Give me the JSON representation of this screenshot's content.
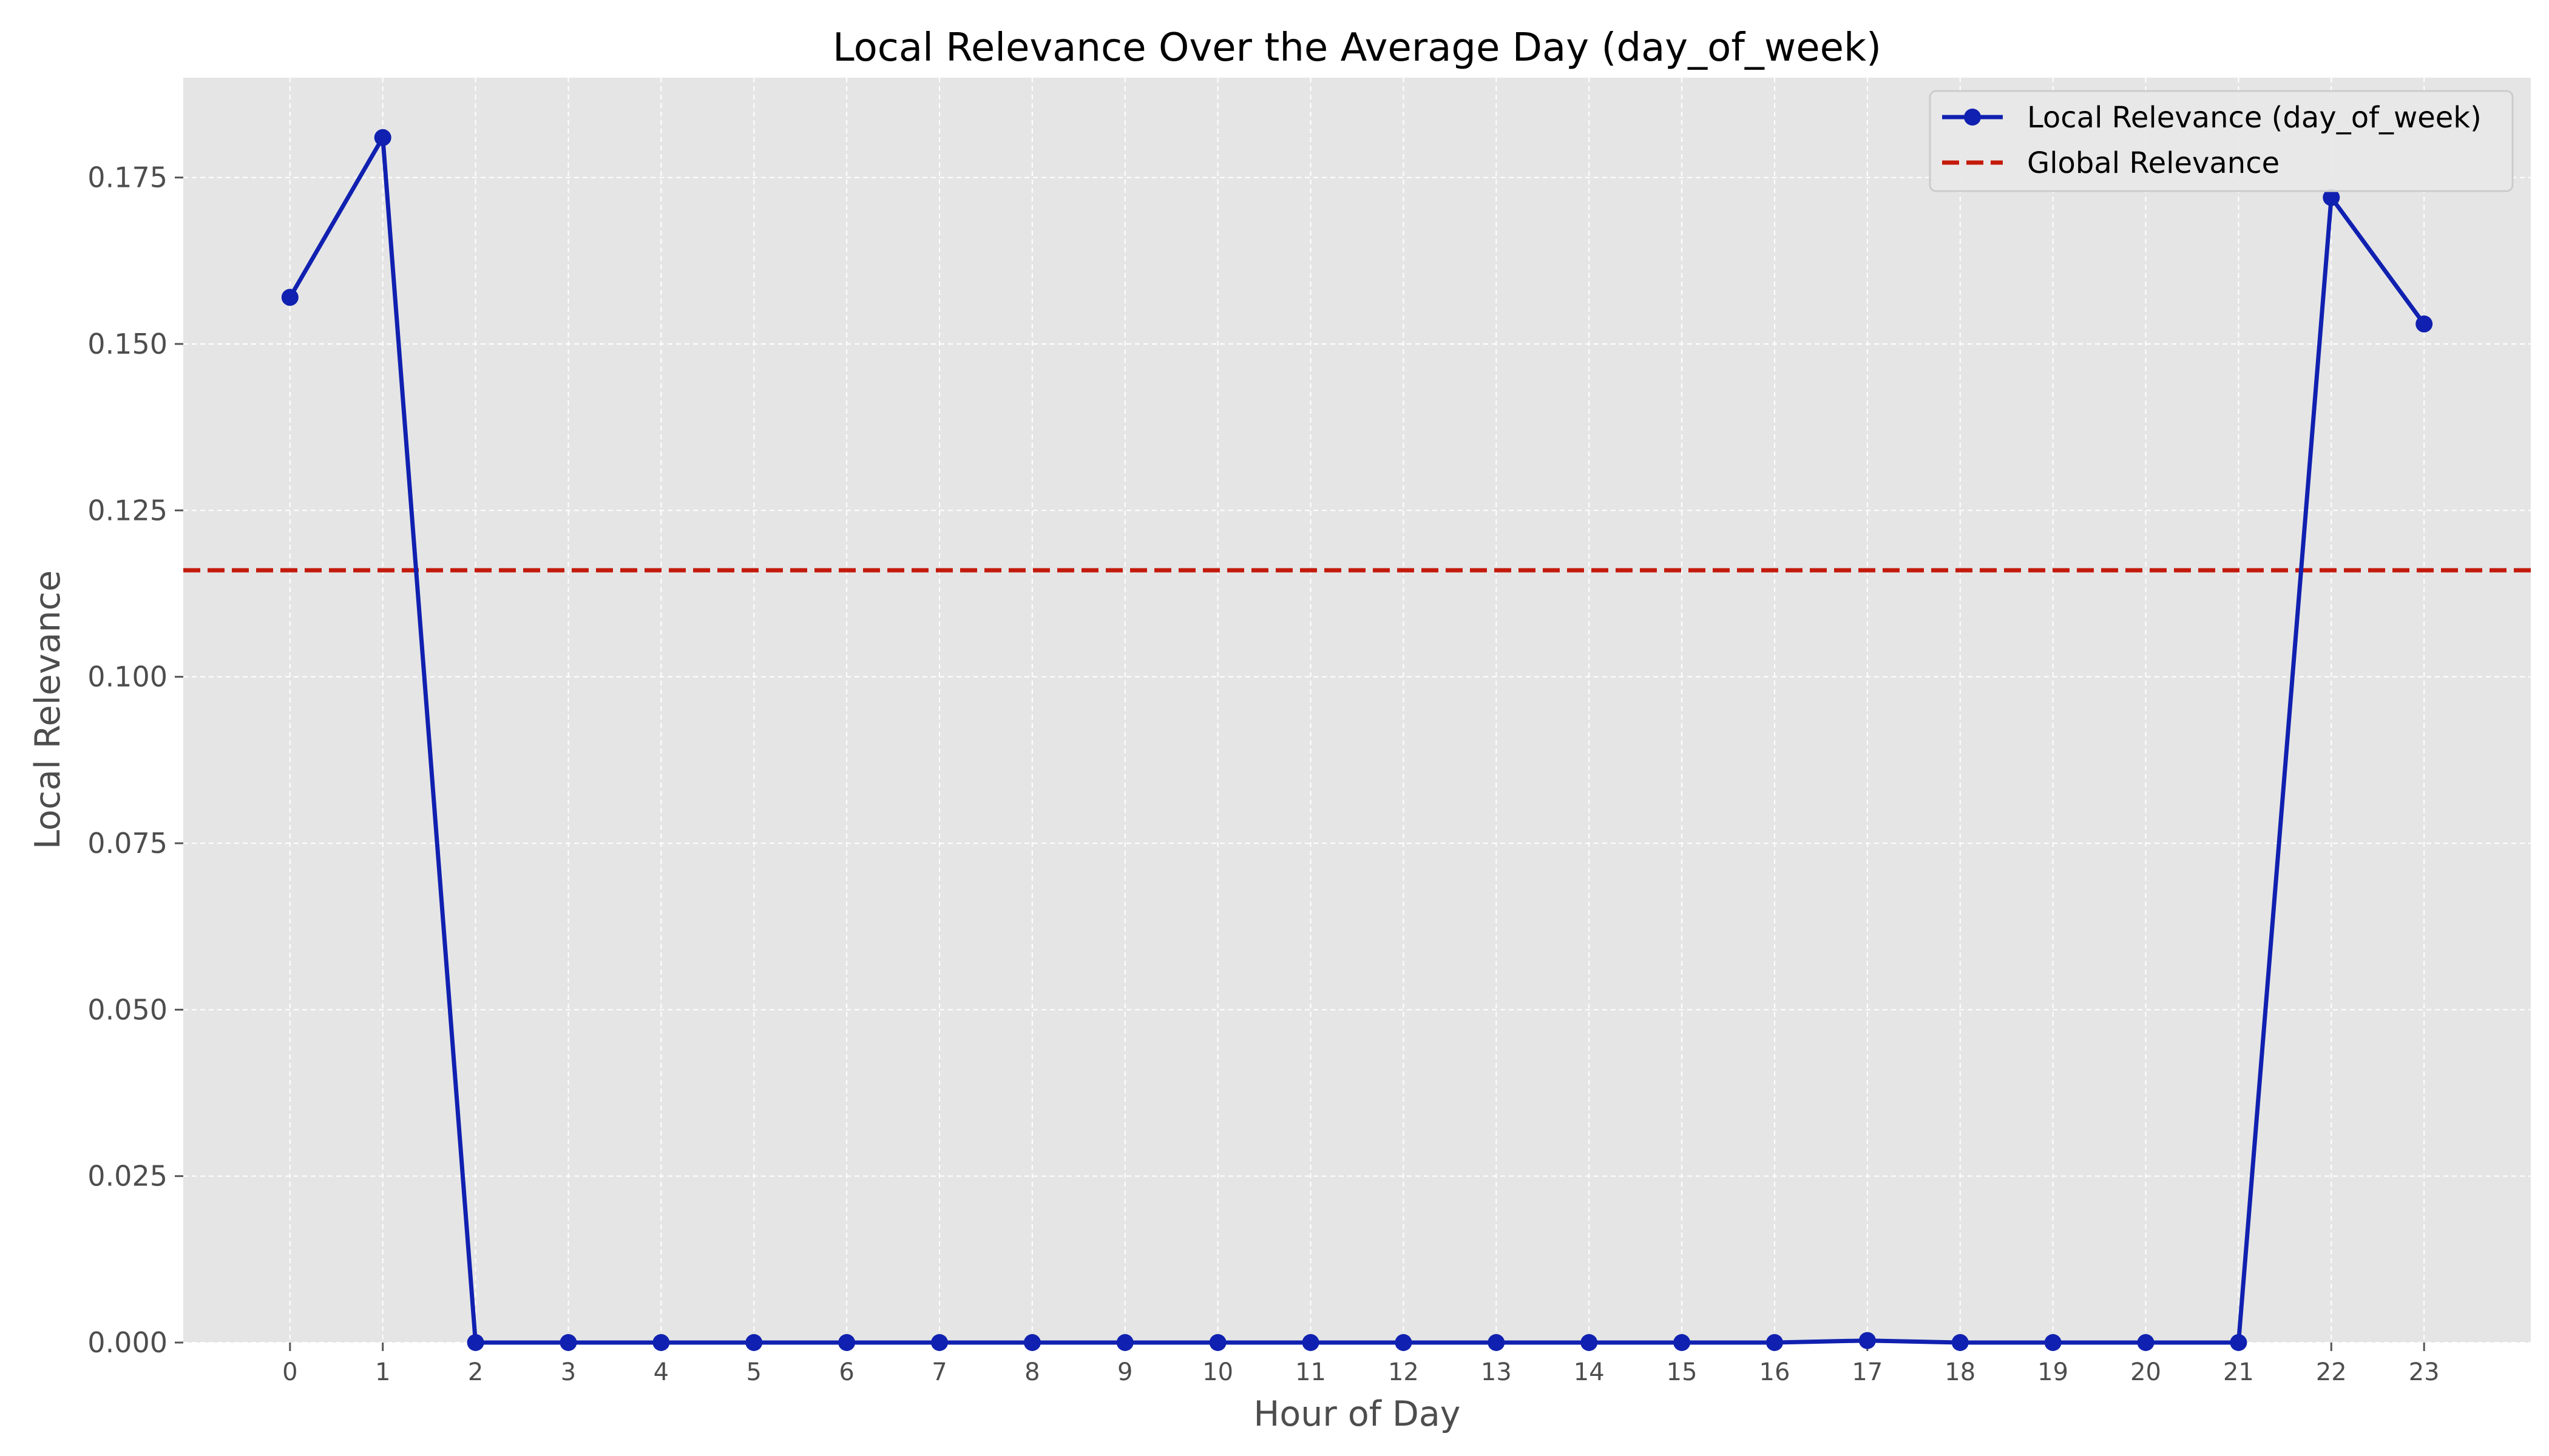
{
  "chart_data": {
    "type": "line",
    "title": "Local Relevance Over the Average Day (day_of_week)",
    "xlabel": "Hour of Day",
    "ylabel": "Local Relevance",
    "x": [
      0,
      1,
      2,
      3,
      4,
      5,
      6,
      7,
      8,
      9,
      10,
      11,
      12,
      13,
      14,
      15,
      16,
      17,
      18,
      19,
      20,
      21,
      22,
      23
    ],
    "xticks": [
      "0",
      "1",
      "2",
      "3",
      "4",
      "5",
      "6",
      "7",
      "8",
      "9",
      "10",
      "11",
      "12",
      "13",
      "14",
      "15",
      "16",
      "17",
      "18",
      "19",
      "20",
      "21",
      "22",
      "23"
    ],
    "xlim": [
      -1.15,
      24.15
    ],
    "ylim": [
      0,
      0.19
    ],
    "yticks": [
      "0.000",
      "0.025",
      "0.050",
      "0.075",
      "0.100",
      "0.125",
      "0.150",
      "0.175"
    ],
    "ytick_values": [
      0,
      0.025,
      0.05,
      0.075,
      0.1,
      0.125,
      0.15,
      0.175
    ],
    "series": [
      {
        "name": "Local Relevance (day_of_week)",
        "color": "#1020b0",
        "marker": "circle",
        "values": [
          0.157,
          0.181,
          0,
          0,
          0,
          0,
          0,
          0,
          0,
          0,
          0,
          0,
          0,
          0,
          0,
          0,
          0,
          0.0003,
          0,
          0,
          0,
          0,
          0.172,
          0.153
        ]
      }
    ],
    "reference_lines": [
      {
        "name": "Global Relevance",
        "orientation": "horizontal",
        "value": 0.116,
        "color": "#c41a0c",
        "style": "dashed"
      }
    ],
    "grid": true,
    "background": "#e5e5e5",
    "legend_position": "top-right"
  }
}
